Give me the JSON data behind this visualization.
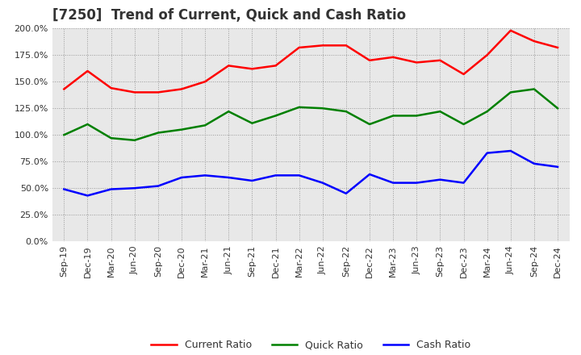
{
  "title": "[7250]  Trend of Current, Quick and Cash Ratio",
  "labels": [
    "Sep-19",
    "Dec-19",
    "Mar-20",
    "Jun-20",
    "Sep-20",
    "Dec-20",
    "Mar-21",
    "Jun-21",
    "Sep-21",
    "Dec-21",
    "Mar-22",
    "Jun-22",
    "Sep-22",
    "Dec-22",
    "Mar-23",
    "Jun-23",
    "Sep-23",
    "Dec-23",
    "Mar-24",
    "Jun-24",
    "Sep-24",
    "Dec-24"
  ],
  "current_ratio": [
    1.43,
    1.6,
    1.44,
    1.4,
    1.4,
    1.43,
    1.5,
    1.65,
    1.62,
    1.65,
    1.82,
    1.84,
    1.84,
    1.7,
    1.73,
    1.68,
    1.7,
    1.57,
    1.75,
    1.98,
    1.88,
    1.82
  ],
  "quick_ratio": [
    1.0,
    1.1,
    0.97,
    0.95,
    1.02,
    1.05,
    1.09,
    1.22,
    1.11,
    1.18,
    1.26,
    1.25,
    1.22,
    1.1,
    1.18,
    1.18,
    1.22,
    1.1,
    1.22,
    1.4,
    1.43,
    1.25
  ],
  "cash_ratio": [
    0.49,
    0.43,
    0.49,
    0.5,
    0.52,
    0.6,
    0.62,
    0.6,
    0.57,
    0.62,
    0.62,
    0.55,
    0.45,
    0.63,
    0.55,
    0.55,
    0.58,
    0.55,
    0.83,
    0.85,
    0.73,
    0.7
  ],
  "current_color": "#FF0000",
  "quick_color": "#008000",
  "cash_color": "#0000FF",
  "ylim": [
    0.0,
    2.0
  ],
  "yticks": [
    0.0,
    0.25,
    0.5,
    0.75,
    1.0,
    1.25,
    1.5,
    1.75,
    2.0
  ],
  "background_color": "#FFFFFF",
  "plot_bg_color": "#E8E8E8",
  "grid_color": "#999999",
  "title_fontsize": 12,
  "legend_fontsize": 9,
  "tick_fontsize": 8,
  "title_color": "#333333"
}
